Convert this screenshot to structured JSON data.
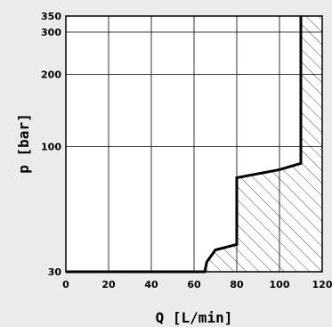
{
  "chart_data": {
    "type": "line",
    "title": "",
    "xlabel": "Q [L/min]",
    "ylabel": "p [bar]",
    "xlim": [
      0,
      120
    ],
    "ylim": [
      30,
      350
    ],
    "yscale": "log",
    "grid": true,
    "x_ticks": [
      0,
      20,
      40,
      60,
      80,
      100,
      120
    ],
    "x_tick_labels": [
      "0",
      "20",
      "40",
      "60",
      "80",
      "100",
      "120"
    ],
    "y_ticks": [
      30,
      100,
      200,
      300,
      350
    ],
    "y_tick_labels": [
      "30",
      "100",
      "200",
      "300",
      "350"
    ],
    "x_gridlines": [
      20,
      40,
      60,
      80,
      100
    ],
    "y_gridlines": [
      100,
      200,
      300
    ],
    "series": [
      {
        "x": [
          0,
          65,
          66,
          70,
          80,
          80,
          100,
          110,
          110
        ],
        "y": [
          30,
          30,
          33,
          37,
          39,
          74,
          80,
          85,
          350
        ]
      }
    ],
    "shaded_region": "hatched area to the right of and below the curve"
  }
}
